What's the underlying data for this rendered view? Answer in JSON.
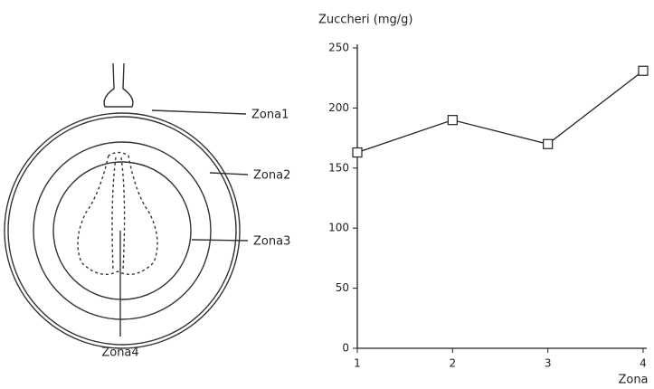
{
  "diagram": {
    "labels": [
      "Zona1",
      "Zona2",
      "Zona3",
      "Zona4"
    ]
  },
  "chart_data": {
    "type": "line",
    "y_label": "Zuccheri (mg/g)",
    "x_label": "Zona",
    "x": [
      1,
      2,
      3,
      4
    ],
    "values": [
      163,
      190,
      170,
      231
    ],
    "color": "#222",
    "xlim": [
      1,
      4
    ],
    "xticks": [
      1,
      2,
      3,
      4
    ],
    "ylim": [
      0,
      250
    ],
    "yticks": [
      0,
      50,
      100,
      150,
      200,
      250
    ]
  }
}
